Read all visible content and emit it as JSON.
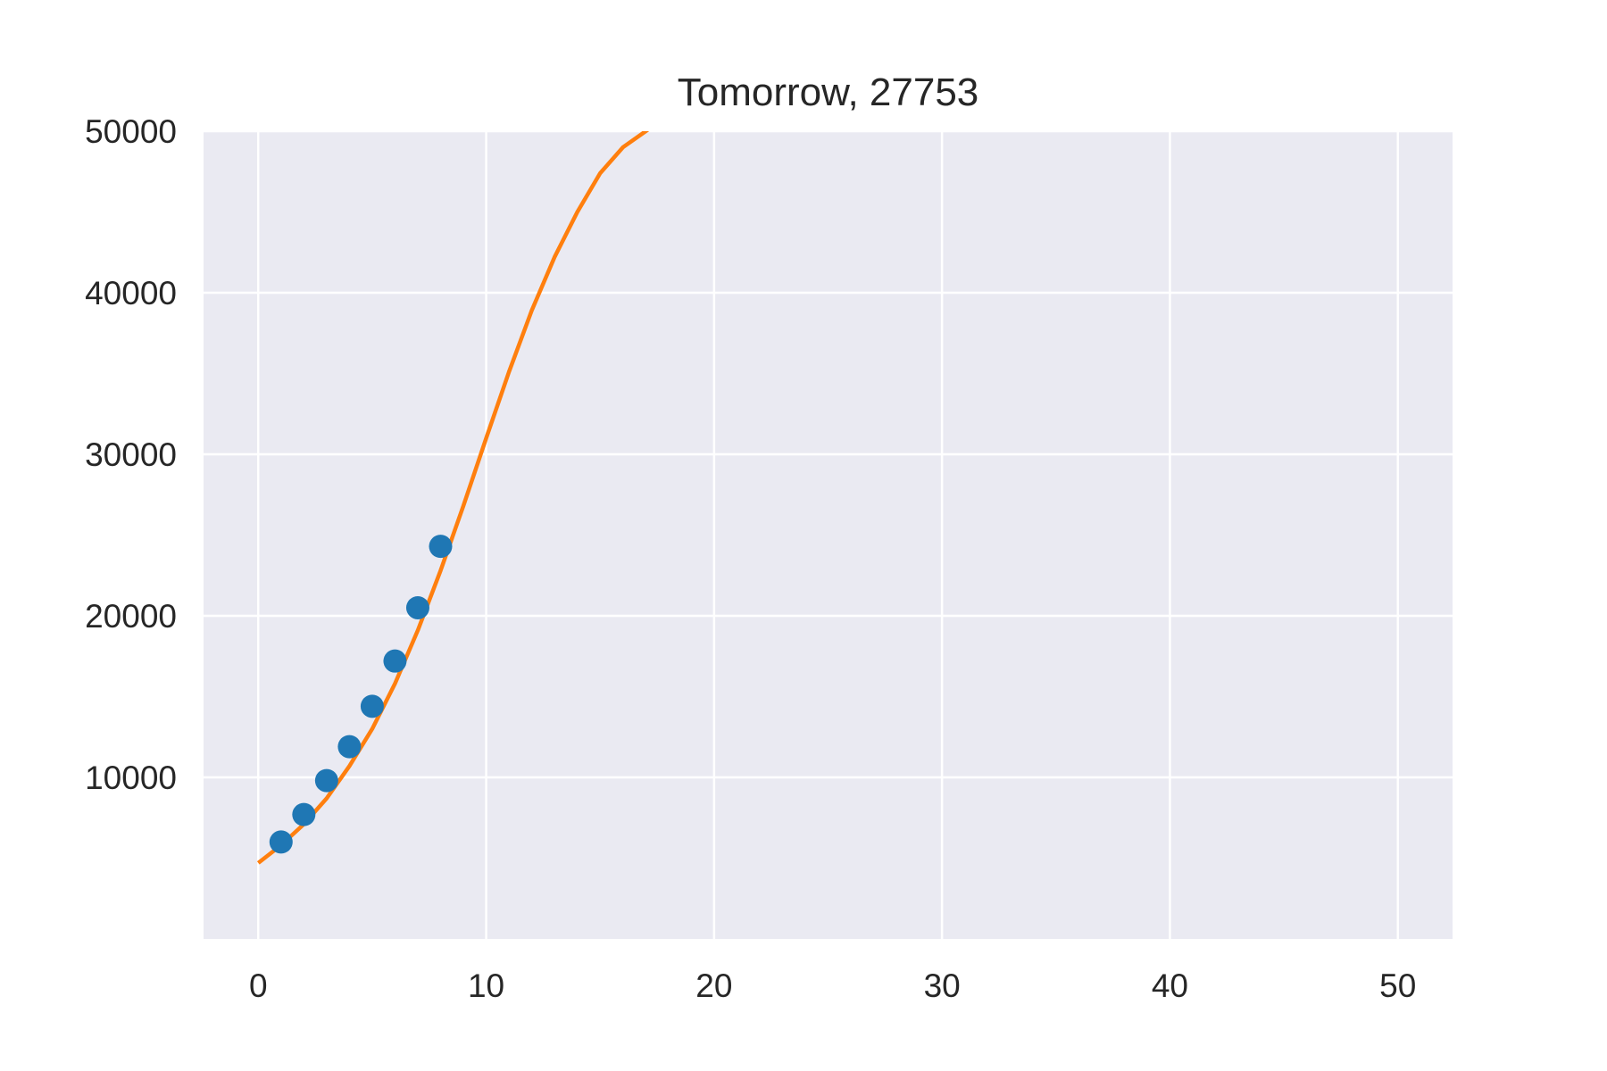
{
  "chart_data": {
    "type": "scatter",
    "title": "Tomorrow, 27753",
    "xlabel": "",
    "ylabel": "",
    "xlim": [
      -2.4,
      52.4
    ],
    "ylim": [
      0,
      50000
    ],
    "xticks": [
      0,
      10,
      20,
      30,
      40,
      50
    ],
    "yticks": [
      10000,
      20000,
      30000,
      40000,
      50000
    ],
    "grid": true,
    "colors": {
      "background": "#EAEAF2",
      "grid": "#FFFFFF",
      "points": "#1F77B4",
      "fit": "#FF7F0E"
    },
    "series": [
      {
        "kind": "scatter",
        "x": [
          1,
          2,
          3,
          4,
          5,
          6,
          7,
          8
        ],
        "y": [
          6000,
          7700,
          9800,
          11900,
          14400,
          17200,
          20500,
          24300
        ]
      },
      {
        "kind": "line",
        "x": [
          0,
          1,
          2,
          3,
          4,
          5,
          6,
          7,
          8,
          9,
          10,
          11,
          12,
          13,
          14,
          15,
          16,
          17,
          17.5
        ],
        "y": [
          4700,
          5800,
          7100,
          8700,
          10700,
          13000,
          15800,
          19100,
          22800,
          26800,
          31000,
          35100,
          38900,
          42200,
          45000,
          47400,
          49000,
          50000,
          50500
        ]
      }
    ]
  }
}
